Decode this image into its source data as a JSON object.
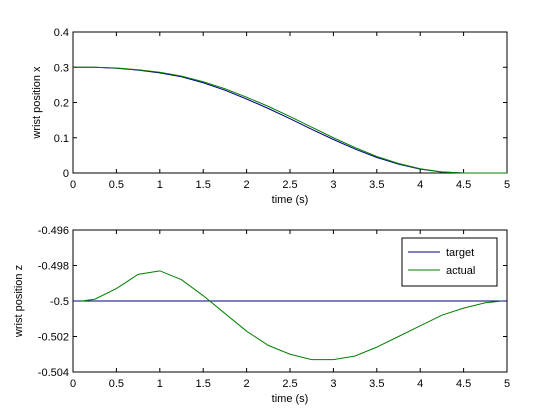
{
  "chart_data": [
    {
      "type": "line",
      "xlabel": "time (s)",
      "ylabel": "wrist position x",
      "xlim": [
        0,
        5
      ],
      "ylim": [
        0,
        0.4
      ],
      "xticks": [
        "0",
        "0.5",
        "1",
        "1.5",
        "2",
        "2.5",
        "3",
        "3.5",
        "4",
        "4.5",
        "5"
      ],
      "yticks": [
        "0",
        "0.1",
        "0.2",
        "0.3",
        "0.4"
      ],
      "grid": false,
      "legend": null,
      "series": [
        {
          "color": "#00007f",
          "x": [
            0,
            0.25,
            0.5,
            0.75,
            1,
            1.25,
            1.5,
            1.75,
            2,
            2.25,
            2.5,
            2.75,
            3,
            3.25,
            3.5,
            3.75,
            4,
            4.25,
            4.5,
            4.75,
            5
          ],
          "y": [
            0.3,
            0.3,
            0.297,
            0.292,
            0.284,
            0.273,
            0.256,
            0.235,
            0.21,
            0.183,
            0.154,
            0.124,
            0.095,
            0.068,
            0.044,
            0.025,
            0.011,
            0.003,
            0.0,
            0.0,
            0.0
          ]
        },
        {
          "color": "#007f00",
          "x": [
            0,
            0.25,
            0.5,
            0.75,
            1,
            1.25,
            1.5,
            1.75,
            2,
            2.25,
            2.5,
            2.75,
            3,
            3.25,
            3.5,
            3.75,
            4,
            4.25,
            4.5,
            4.75,
            5
          ],
          "y": [
            0.3,
            0.3,
            0.298,
            0.293,
            0.286,
            0.275,
            0.259,
            0.239,
            0.215,
            0.189,
            0.16,
            0.13,
            0.1,
            0.072,
            0.047,
            0.027,
            0.012,
            0.003,
            0.0,
            0.0,
            0.0
          ]
        }
      ]
    },
    {
      "type": "line",
      "xlabel": "time (s)",
      "ylabel": "wrist position z",
      "xlim": [
        0,
        5
      ],
      "ylim": [
        -0.504,
        -0.496
      ],
      "xticks": [
        "0",
        "0.5",
        "1",
        "1.5",
        "2",
        "2.5",
        "3",
        "3.5",
        "4",
        "4.5",
        "5"
      ],
      "yticks": [
        "-0.504",
        "-0.502",
        "-0.5",
        "-0.498",
        "-0.496"
      ],
      "grid": false,
      "legend": "top-right",
      "series": [
        {
          "name": "target",
          "color": "#00007f",
          "x": [
            0,
            5
          ],
          "y": [
            -0.5,
            -0.5
          ]
        },
        {
          "name": "actual",
          "color": "#007f00",
          "x": [
            0.1,
            0.25,
            0.5,
            0.75,
            1.0,
            1.25,
            1.5,
            1.6,
            1.75,
            2.0,
            2.25,
            2.5,
            2.75,
            3.0,
            3.25,
            3.5,
            3.75,
            4.0,
            4.25,
            4.5,
            4.75,
            4.95
          ],
          "y": [
            -0.5,
            -0.4999,
            -0.4993,
            -0.4985,
            -0.4983,
            -0.4988,
            -0.4997,
            -0.5001,
            -0.5007,
            -0.5017,
            -0.5025,
            -0.503,
            -0.5033,
            -0.5033,
            -0.5031,
            -0.5026,
            -0.502,
            -0.5014,
            -0.5008,
            -0.5004,
            -0.5001,
            -0.5
          ]
        }
      ]
    }
  ]
}
